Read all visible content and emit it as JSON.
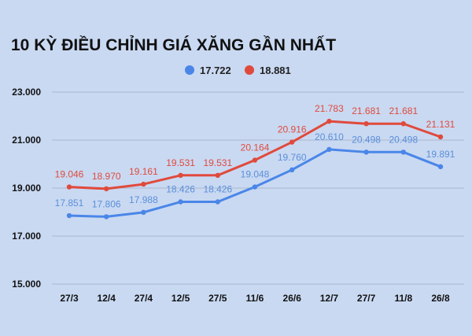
{
  "chart_data": {
    "type": "line",
    "title": "10 KỲ ĐIỀU CHỈNH GIÁ XĂNG GẦN NHẤT",
    "categories": [
      "27/3",
      "12/4",
      "27/4",
      "12/5",
      "27/5",
      "11/6",
      "26/6",
      "12/7",
      "27/7",
      "11/8",
      "26/8"
    ],
    "ylim": [
      15,
      23
    ],
    "yticks": [
      {
        "value": 15,
        "label": "15.000"
      },
      {
        "value": 17,
        "label": "17.000"
      },
      {
        "value": 19,
        "label": "19.000"
      },
      {
        "value": 21,
        "label": "21.000"
      },
      {
        "value": 23,
        "label": "23.000"
      }
    ],
    "grid": true,
    "legend_position": "top",
    "series": [
      {
        "name": "17.722",
        "color": "#4a86e8",
        "label_color": "#5b8fd9",
        "values": [
          17.851,
          17.806,
          17.988,
          18.426,
          18.426,
          19.048,
          19.76,
          20.61,
          20.498,
          20.498,
          19.891
        ],
        "labels": [
          "17.851",
          "17.806",
          "17.988",
          "18.426",
          "18.426",
          "19.048",
          "19.760",
          "20.610",
          "20.498",
          "20.498",
          "19.891"
        ]
      },
      {
        "name": "18.881",
        "color": "#e04a3c",
        "label_color": "#e04a3c",
        "values": [
          19.046,
          18.97,
          19.161,
          19.531,
          19.531,
          20.164,
          20.916,
          21.783,
          21.681,
          21.681,
          21.131
        ],
        "labels": [
          "19.046",
          "18.970",
          "19.161",
          "19.531",
          "19.531",
          "20.164",
          "20.916",
          "21.783",
          "21.681",
          "21.681",
          "21.131"
        ]
      }
    ]
  }
}
